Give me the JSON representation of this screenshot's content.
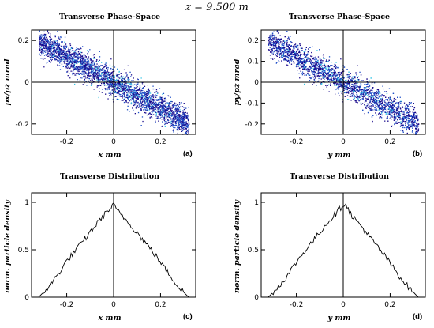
{
  "main_title": "z = 9.500 m",
  "colors": {
    "low_density": "#1a0a8c",
    "mid_density": "#1e4fc8",
    "high_density": "#38c6e6",
    "line": "#000000"
  },
  "panels": [
    {
      "tag": "(a)",
      "title": "Transverse Phase-Space",
      "xlabel": "x mm",
      "ylabel": "px/pz mrad"
    },
    {
      "tag": "(b)",
      "title": "Transverse Phase-Space",
      "xlabel": "y mm",
      "ylabel": "py/pz mrad"
    },
    {
      "tag": "(c)",
      "title": "Transverse Distribution",
      "xlabel": "x mm",
      "ylabel": "norm. particle density"
    },
    {
      "tag": "(d)",
      "title": "Transverse Distribution",
      "xlabel": "y mm",
      "ylabel": "norm. particle density"
    }
  ],
  "chart_data": [
    {
      "type": "scatter",
      "title": "Transverse Phase-Space",
      "xlabel": "x mm",
      "ylabel": "px/pz mrad",
      "xlim": [
        -0.35,
        0.35
      ],
      "ylim": [
        -0.25,
        0.25
      ],
      "xticks": [
        "-0.2",
        "0",
        "0.2"
      ],
      "yticks": [
        "-0.2",
        "0",
        "0.2"
      ],
      "series_description_values": {
        "slope_mrad_per_mm": -0.62,
        "x_half_width_mm": 0.32,
        "y_spread_mrad": 0.06
      }
    },
    {
      "type": "scatter",
      "title": "Transverse Phase-Space",
      "xlabel": "y mm",
      "ylabel": "py/pz mrad",
      "xlim": [
        -0.35,
        0.35
      ],
      "ylim": [
        -0.25,
        0.25
      ],
      "xticks": [
        "-0.2",
        "0",
        "0.2"
      ],
      "yticks": [
        "-0.2",
        "-0.1",
        "0",
        "0.1",
        "0.2"
      ],
      "series_description_values": {
        "slope_mrad_per_mm": -0.62,
        "x_half_width_mm": 0.32,
        "y_spread_mrad": 0.06
      }
    },
    {
      "type": "line",
      "title": "Transverse Distribution",
      "xlabel": "x mm",
      "ylabel": "norm. particle density",
      "xlim": [
        -0.35,
        0.35
      ],
      "ylim": [
        0,
        1.1
      ],
      "xticks": [
        "-0.2",
        "0",
        "0.2"
      ],
      "yticks": [
        "0",
        "0.5",
        "1"
      ],
      "x": [
        -0.32,
        -0.28,
        -0.24,
        -0.2,
        -0.16,
        -0.12,
        -0.08,
        -0.04,
        -0.02,
        0,
        0.02,
        0.04,
        0.08,
        0.12,
        0.16,
        0.2,
        0.24,
        0.28,
        0.32
      ],
      "y": [
        0.0,
        0.1,
        0.23,
        0.38,
        0.5,
        0.62,
        0.75,
        0.87,
        0.92,
        0.97,
        0.9,
        0.85,
        0.74,
        0.62,
        0.5,
        0.37,
        0.23,
        0.1,
        0.0
      ]
    },
    {
      "type": "line",
      "title": "Transverse Distribution",
      "xlabel": "y mm",
      "ylabel": "norm. particle density",
      "xlim": [
        -0.35,
        0.35
      ],
      "ylim": [
        0,
        1.1
      ],
      "xticks": [
        "-0.2",
        "0",
        "0.2"
      ],
      "yticks": [
        "0",
        "0.5",
        "1"
      ],
      "x": [
        -0.32,
        -0.28,
        -0.24,
        -0.2,
        -0.16,
        -0.12,
        -0.08,
        -0.04,
        -0.02,
        0,
        0.01,
        0.02,
        0.04,
        0.08,
        0.12,
        0.16,
        0.2,
        0.24,
        0.28,
        0.32
      ],
      "y": [
        0.0,
        0.1,
        0.22,
        0.37,
        0.5,
        0.62,
        0.75,
        0.86,
        0.92,
        0.97,
        1.0,
        0.93,
        0.85,
        0.74,
        0.61,
        0.49,
        0.36,
        0.22,
        0.1,
        0.0
      ]
    }
  ]
}
